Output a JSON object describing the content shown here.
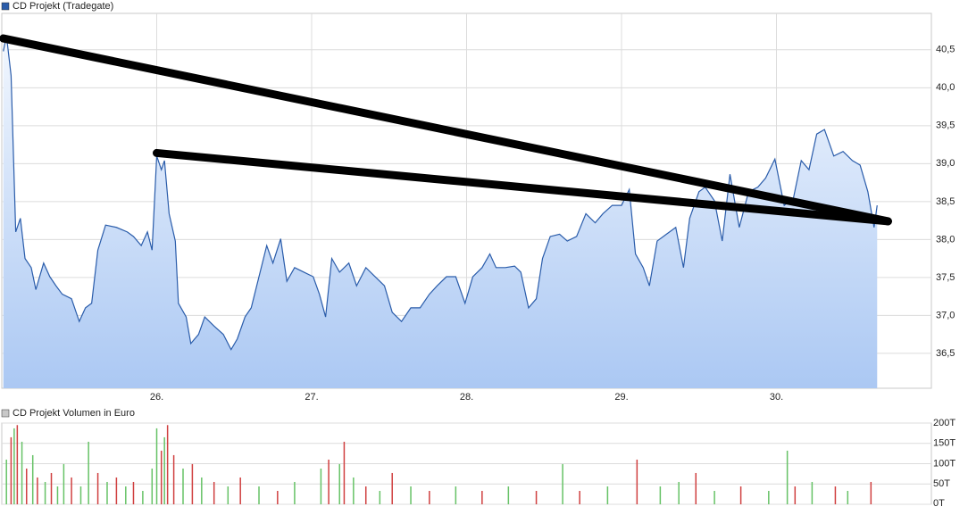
{
  "chart_data": [
    {
      "type": "area",
      "title": "CD Projekt (Tradegate)",
      "color": "#2a5caa",
      "grid": true,
      "xlim": [
        25.0,
        31.0
      ],
      "xticks": [
        {
          "value": 26,
          "label": "26."
        },
        {
          "value": 27,
          "label": "27."
        },
        {
          "value": 28,
          "label": "28."
        },
        {
          "value": 29,
          "label": "29."
        },
        {
          "value": 30,
          "label": "30."
        }
      ],
      "ylim": [
        36.04,
        40.98
      ],
      "yticks": [
        {
          "value": 36.5,
          "label": "36,5"
        },
        {
          "value": 37,
          "label": "37,0"
        },
        {
          "value": 37.5,
          "label": "37,5"
        },
        {
          "value": 38,
          "label": "38,0"
        },
        {
          "value": 38.5,
          "label": "38,5"
        },
        {
          "value": 39,
          "label": "39,0"
        },
        {
          "value": 39.5,
          "label": "39,5"
        },
        {
          "value": 40,
          "label": "40,0"
        },
        {
          "value": 40.5,
          "label": "40,5"
        }
      ],
      "x": [
        25.01,
        25.03,
        25.06,
        25.09,
        25.12,
        25.15,
        25.19,
        25.22,
        25.27,
        25.31,
        25.35,
        25.39,
        25.45,
        25.5,
        25.54,
        25.58,
        25.62,
        25.67,
        25.74,
        25.81,
        25.85,
        25.9,
        25.94,
        25.97,
        26.0,
        26.03,
        26.05,
        26.08,
        26.12,
        26.14,
        26.19,
        26.22,
        26.27,
        26.31,
        26.37,
        26.43,
        26.48,
        26.52,
        26.57,
        26.61,
        26.66,
        26.71,
        26.75,
        26.8,
        26.84,
        26.89,
        26.95,
        27.01,
        27.05,
        27.09,
        27.13,
        27.18,
        27.24,
        27.29,
        27.35,
        27.41,
        27.47,
        27.52,
        27.58,
        27.64,
        27.7,
        27.76,
        27.81,
        27.87,
        27.93,
        27.99,
        28.04,
        28.1,
        28.15,
        28.19,
        28.25,
        28.31,
        28.35,
        28.4,
        28.45,
        28.49,
        28.54,
        28.6,
        28.65,
        28.71,
        28.77,
        28.83,
        28.88,
        28.94,
        29.0,
        29.05,
        29.09,
        29.14,
        29.18,
        29.23,
        29.29,
        29.35,
        29.4,
        29.44,
        29.5,
        29.54,
        29.6,
        29.65,
        29.7,
        29.76,
        29.82,
        29.88,
        29.93,
        29.99,
        30.05,
        30.11,
        30.16,
        30.21,
        30.26,
        30.31,
        30.37,
        30.43,
        30.49,
        30.54,
        30.59,
        30.63,
        30.65
      ],
      "values": [
        40.48,
        40.69,
        40.16,
        38.1,
        38.28,
        37.75,
        37.63,
        37.34,
        37.69,
        37.51,
        37.39,
        37.28,
        37.22,
        36.92,
        37.1,
        37.16,
        37.86,
        38.19,
        38.16,
        38.1,
        38.04,
        37.92,
        38.1,
        37.86,
        39.1,
        38.92,
        39.04,
        38.34,
        37.98,
        37.16,
        36.98,
        36.63,
        36.75,
        36.98,
        36.86,
        36.75,
        36.55,
        36.69,
        36.98,
        37.1,
        37.51,
        37.92,
        37.69,
        38.01,
        37.45,
        37.63,
        37.57,
        37.51,
        37.28,
        36.98,
        37.75,
        37.57,
        37.69,
        37.39,
        37.63,
        37.51,
        37.39,
        37.04,
        36.92,
        37.1,
        37.1,
        37.28,
        37.39,
        37.51,
        37.51,
        37.16,
        37.51,
        37.63,
        37.81,
        37.63,
        37.63,
        37.65,
        37.57,
        37.1,
        37.22,
        37.75,
        38.04,
        38.07,
        37.98,
        38.04,
        38.34,
        38.22,
        38.34,
        38.45,
        38.45,
        38.66,
        37.81,
        37.63,
        37.39,
        37.98,
        38.07,
        38.16,
        37.63,
        38.28,
        38.63,
        38.69,
        38.51,
        37.98,
        38.86,
        38.16,
        38.63,
        38.69,
        38.81,
        39.06,
        38.45,
        38.55,
        39.04,
        38.92,
        39.39,
        39.45,
        39.1,
        39.16,
        39.04,
        38.98,
        38.63,
        38.16,
        38.45
      ],
      "trendlines": [
        {
          "x": [
            25.01,
            30.72
          ],
          "y": [
            40.65,
            38.24
          ]
        },
        {
          "x": [
            26.0,
            30.72
          ],
          "y": [
            39.14,
            38.24
          ]
        }
      ]
    },
    {
      "type": "bar",
      "title": "CD Projekt Volumen in Euro",
      "grid": true,
      "xlim": [
        25.0,
        31.0
      ],
      "ylim": [
        0,
        200
      ],
      "yticks": [
        {
          "value": 0,
          "label": "0T"
        },
        {
          "value": 50,
          "label": "50T"
        },
        {
          "value": 100,
          "label": "100T"
        },
        {
          "value": 150,
          "label": "150T"
        },
        {
          "value": 200,
          "label": "200T"
        }
      ],
      "x": [
        25.03,
        25.06,
        25.08,
        25.1,
        25.13,
        25.16,
        25.2,
        25.23,
        25.28,
        25.32,
        25.36,
        25.4,
        25.45,
        25.51,
        25.56,
        25.62,
        25.68,
        25.74,
        25.8,
        25.85,
        25.91,
        25.97,
        26.0,
        26.03,
        26.05,
        26.07,
        26.11,
        26.17,
        26.23,
        26.29,
        26.37,
        26.46,
        26.54,
        26.66,
        26.78,
        26.89,
        27.06,
        27.11,
        27.18,
        27.21,
        27.27,
        27.35,
        27.44,
        27.52,
        27.64,
        27.76,
        27.93,
        28.1,
        28.27,
        28.45,
        28.62,
        28.73,
        28.91,
        29.1,
        29.25,
        29.37,
        29.48,
        29.6,
        29.77,
        29.95,
        30.07,
        30.12,
        30.23,
        30.38,
        30.46,
        30.61
      ],
      "values": [
        110,
        165,
        187,
        195,
        154,
        88,
        121,
        66,
        55,
        77,
        44,
        99,
        66,
        44,
        154,
        77,
        55,
        66,
        44,
        55,
        33,
        88,
        187,
        132,
        165,
        195,
        121,
        88,
        99,
        66,
        55,
        44,
        66,
        44,
        33,
        55,
        88,
        110,
        99,
        154,
        66,
        44,
        33,
        77,
        44,
        33,
        44,
        33,
        44,
        33,
        99,
        33,
        44,
        110,
        44,
        55,
        77,
        33,
        44,
        33,
        132,
        44,
        55,
        44,
        33,
        55
      ],
      "colors": [
        "#66c266",
        "#d04040",
        "#66c266",
        "#d04040",
        "#66c266",
        "#d04040",
        "#66c266",
        "#d04040",
        "#66c266",
        "#d04040",
        "#66c266",
        "#66c266",
        "#d04040",
        "#66c266",
        "#66c266",
        "#d04040",
        "#66c266",
        "#d04040",
        "#66c266",
        "#d04040",
        "#66c266",
        "#66c266",
        "#66c266",
        "#d04040",
        "#66c266",
        "#d04040",
        "#d04040",
        "#66c266",
        "#d04040",
        "#66c266",
        "#d04040",
        "#66c266",
        "#d04040",
        "#66c266",
        "#d04040",
        "#66c266",
        "#66c266",
        "#d04040",
        "#66c266",
        "#d04040",
        "#66c266",
        "#d04040",
        "#66c266",
        "#d04040",
        "#66c266",
        "#d04040",
        "#66c266",
        "#d04040",
        "#66c266",
        "#d04040",
        "#66c266",
        "#d04040",
        "#66c266",
        "#d04040",
        "#66c266",
        "#66c266",
        "#d04040",
        "#66c266",
        "#d04040",
        "#66c266",
        "#66c266",
        "#d04040",
        "#66c266",
        "#d04040",
        "#66c266",
        "#d04040"
      ]
    }
  ]
}
